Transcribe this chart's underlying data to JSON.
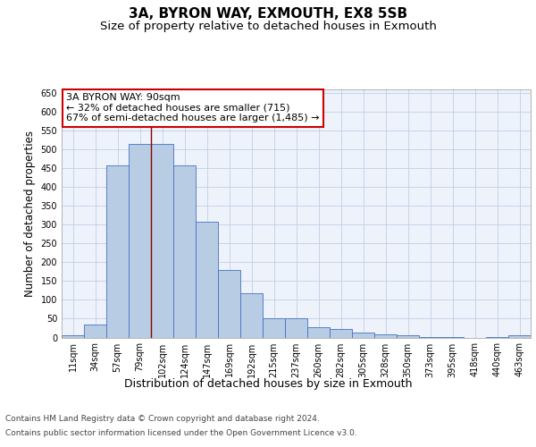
{
  "title1": "3A, BYRON WAY, EXMOUTH, EX8 5SB",
  "title2": "Size of property relative to detached houses in Exmouth",
  "xlabel": "Distribution of detached houses by size in Exmouth",
  "ylabel": "Number of detached properties",
  "categories": [
    "11sqm",
    "34sqm",
    "57sqm",
    "79sqm",
    "102sqm",
    "124sqm",
    "147sqm",
    "169sqm",
    "192sqm",
    "215sqm",
    "237sqm",
    "260sqm",
    "282sqm",
    "305sqm",
    "328sqm",
    "350sqm",
    "373sqm",
    "395sqm",
    "418sqm",
    "440sqm",
    "463sqm"
  ],
  "values": [
    7,
    35,
    457,
    515,
    515,
    457,
    307,
    180,
    118,
    50,
    50,
    28,
    22,
    14,
    8,
    5,
    2,
    2,
    0,
    2,
    5
  ],
  "bar_color": "#b8cce4",
  "bar_edge_color": "#4472c4",
  "grid_color": "#c0d0e8",
  "annotation_box_text": "3A BYRON WAY: 90sqm\n← 32% of detached houses are smaller (715)\n67% of semi-detached houses are larger (1,485) →",
  "annotation_box_color": "#ffffff",
  "annotation_box_edge_color": "#cc0000",
  "vline_x": 3.5,
  "vline_color": "#8b0000",
  "ylim": [
    0,
    660
  ],
  "yticks": [
    0,
    50,
    100,
    150,
    200,
    250,
    300,
    350,
    400,
    450,
    500,
    550,
    600,
    650
  ],
  "footer_line1": "Contains HM Land Registry data © Crown copyright and database right 2024.",
  "footer_line2": "Contains public sector information licensed under the Open Government Licence v3.0.",
  "title_fontsize": 11,
  "subtitle_fontsize": 9.5,
  "axis_label_fontsize": 9,
  "tick_fontsize": 7,
  "footer_fontsize": 6.5,
  "annotation_fontsize": 8,
  "ylabel_fontsize": 8.5
}
